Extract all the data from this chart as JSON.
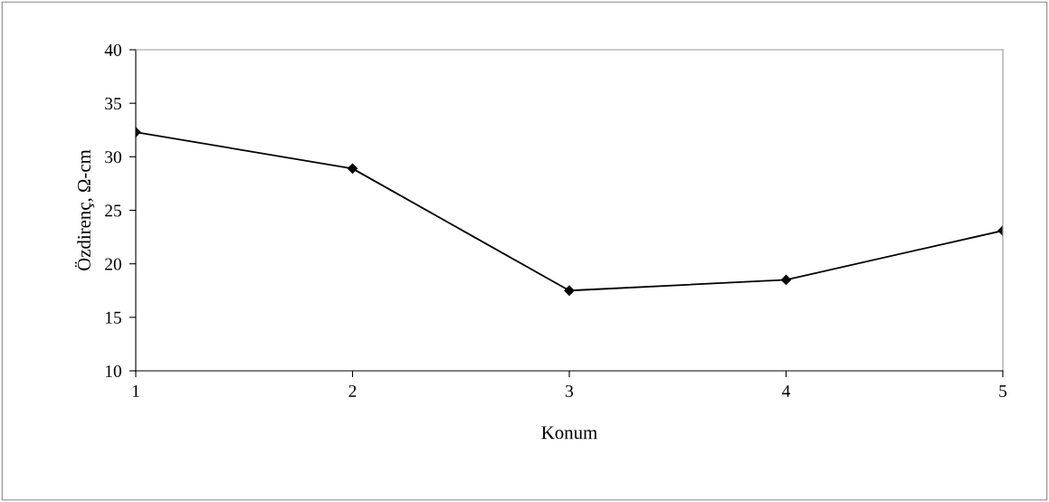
{
  "chart_data": {
    "type": "line",
    "xlabel": "Konum",
    "ylabel": "Özdirenç, Ω-cm",
    "x": [
      1,
      2,
      3,
      4,
      5
    ],
    "series": [
      {
        "color": "#000000",
        "values": [
          32.3,
          28.9,
          17.5,
          18.5,
          23.1
        ]
      }
    ],
    "xlim": [
      1,
      5
    ],
    "xticks": [
      1,
      2,
      3,
      4,
      5
    ],
    "ylim": [
      10,
      40
    ],
    "yticks": [
      10,
      15,
      20,
      25,
      30,
      35,
      40
    ],
    "grid": false,
    "marker": "diamond",
    "line_style": "solid"
  }
}
